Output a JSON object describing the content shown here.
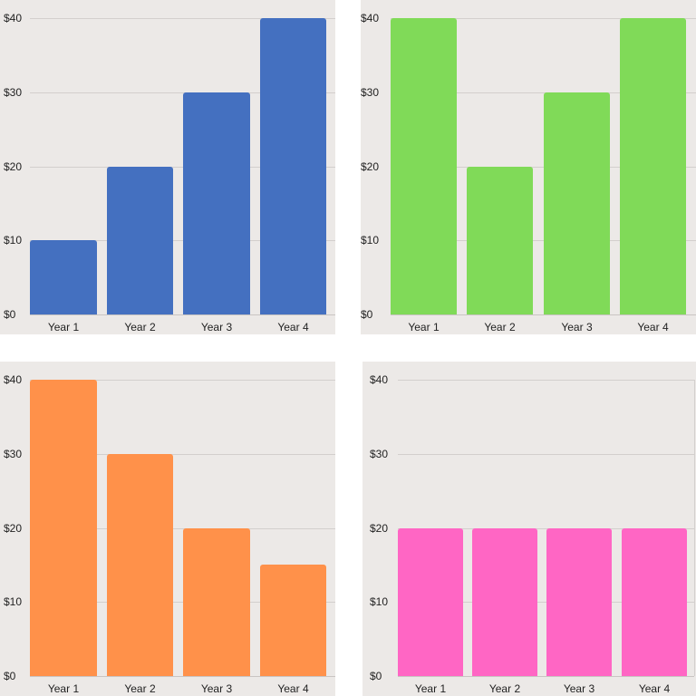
{
  "chart_data": [
    {
      "type": "bar",
      "categories": [
        "Year 1",
        "Year 2",
        "Year 3",
        "Year 4"
      ],
      "values": [
        10,
        20,
        30,
        40
      ],
      "ylim": [
        0,
        40
      ],
      "yticks": [
        "$0",
        "$10",
        "$20",
        "$30",
        "$40"
      ],
      "color": "#4470c0",
      "grid": true
    },
    {
      "type": "bar",
      "categories": [
        "Year 1",
        "Year 2",
        "Year 3",
        "Year 4"
      ],
      "values": [
        40,
        20,
        30,
        40
      ],
      "ylim": [
        0,
        40
      ],
      "yticks": [
        "$0",
        "$10",
        "$20",
        "$30",
        "$40"
      ],
      "color": "#80da58",
      "grid": true
    },
    {
      "type": "bar",
      "categories": [
        "Year 1",
        "Year 2",
        "Year 3",
        "Year 4"
      ],
      "values": [
        40,
        30,
        20,
        15
      ],
      "ylim": [
        0,
        40
      ],
      "yticks": [
        "$0",
        "$10",
        "$20",
        "$30",
        "$40"
      ],
      "color": "#ff914a",
      "grid": true
    },
    {
      "type": "bar",
      "categories": [
        "Year 1",
        "Year 2",
        "Year 3",
        "Year 4"
      ],
      "values": [
        20,
        20,
        20,
        20
      ],
      "ylim": [
        0,
        40
      ],
      "yticks": [
        "$0",
        "$10",
        "$20",
        "$30",
        "$40"
      ],
      "color": "#ff66c4",
      "grid": true
    }
  ]
}
